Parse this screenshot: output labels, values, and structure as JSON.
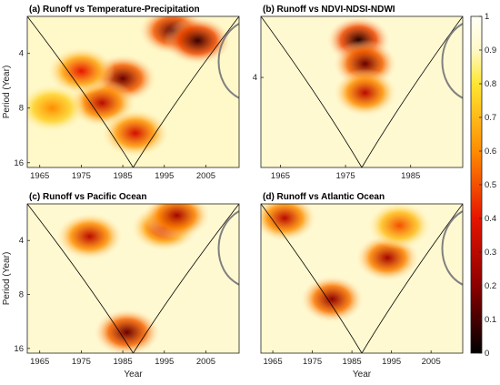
{
  "chart_data": [
    {
      "type": "heatmap",
      "title": "(a) Runoff vs Temperature-Precipitation",
      "xlabel": "",
      "ylabel": "Period (Year)",
      "xlim": [
        1962,
        2013
      ],
      "ylim_log2": [
        2.5,
        17
      ],
      "x_ticks": [
        "1965",
        "1975",
        "1985",
        "1995",
        "2005"
      ],
      "y_ticks": [
        "4",
        "8",
        "16"
      ],
      "background": 0.9,
      "hotspots": [
        {
          "year": 1997,
          "period": 3.0,
          "coherence": 0.12
        },
        {
          "year": 2003,
          "period": 3.4,
          "coherence": 0.08
        },
        {
          "year": 1985,
          "period": 5.5,
          "coherence": 0.15
        },
        {
          "year": 1980,
          "period": 7.5,
          "coherence": 0.3
        },
        {
          "year": 1975,
          "period": 5.0,
          "coherence": 0.4
        },
        {
          "year": 1988,
          "period": 11.0,
          "coherence": 0.35
        },
        {
          "year": 1968,
          "period": 8.0,
          "coherence": 0.6
        }
      ]
    },
    {
      "type": "heatmap",
      "title": "(b) Runoff vs NDVI-NDSI-NDWI",
      "xlabel": "",
      "ylabel": "",
      "xlim": [
        1962,
        1993
      ],
      "ylim_log2": [
        2.5,
        8
      ],
      "x_ticks": [
        "1965",
        "1975",
        "1985"
      ],
      "y_ticks": [
        "4"
      ],
      "background": 0.92,
      "hotspots": [
        {
          "year": 1977,
          "period": 3.0,
          "coherence": 0.05
        },
        {
          "year": 1978,
          "period": 3.6,
          "coherence": 0.15
        },
        {
          "year": 1978,
          "period": 4.5,
          "coherence": 0.3
        }
      ]
    },
    {
      "type": "heatmap",
      "title": "(c) Runoff vs Pacific Ocean",
      "xlabel": "Year",
      "ylabel": "Period (Year)",
      "xlim": [
        1962,
        2013
      ],
      "ylim_log2": [
        2.5,
        17
      ],
      "x_ticks": [
        "1965",
        "1975",
        "1985",
        "1995",
        "2005"
      ],
      "y_ticks": [
        "4",
        "8",
        "16"
      ],
      "background": 0.92,
      "hotspots": [
        {
          "year": 1977,
          "period": 3.8,
          "coherence": 0.3
        },
        {
          "year": 1995,
          "period": 3.4,
          "coherence": 0.35
        },
        {
          "year": 1998,
          "period": 2.9,
          "coherence": 0.25
        },
        {
          "year": 1986,
          "period": 13.0,
          "coherence": 0.15
        }
      ]
    },
    {
      "type": "heatmap",
      "title": "(d) Runoff vs Atlantic Ocean",
      "xlabel": "Year",
      "ylabel": "",
      "xlim": [
        1962,
        2013
      ],
      "ylim_log2": [
        2.5,
        17
      ],
      "x_ticks": [
        "1965",
        "1975",
        "1985",
        "1995",
        "2005"
      ],
      "y_ticks": [],
      "background": 0.92,
      "hotspots": [
        {
          "year": 1968,
          "period": 3.0,
          "coherence": 0.3
        },
        {
          "year": 1980,
          "period": 8.5,
          "coherence": 0.2
        },
        {
          "year": 1994,
          "period": 5.0,
          "coherence": 0.25
        },
        {
          "year": 1997,
          "period": 3.3,
          "coherence": 0.5
        }
      ]
    }
  ],
  "colorbar": {
    "ticks": [
      "0",
      "0.1",
      "0.2",
      "0.3",
      "0.4",
      "0.5",
      "0.6",
      "0.7",
      "0.8",
      "0.9",
      "1"
    ],
    "min": 0,
    "max": 1
  }
}
